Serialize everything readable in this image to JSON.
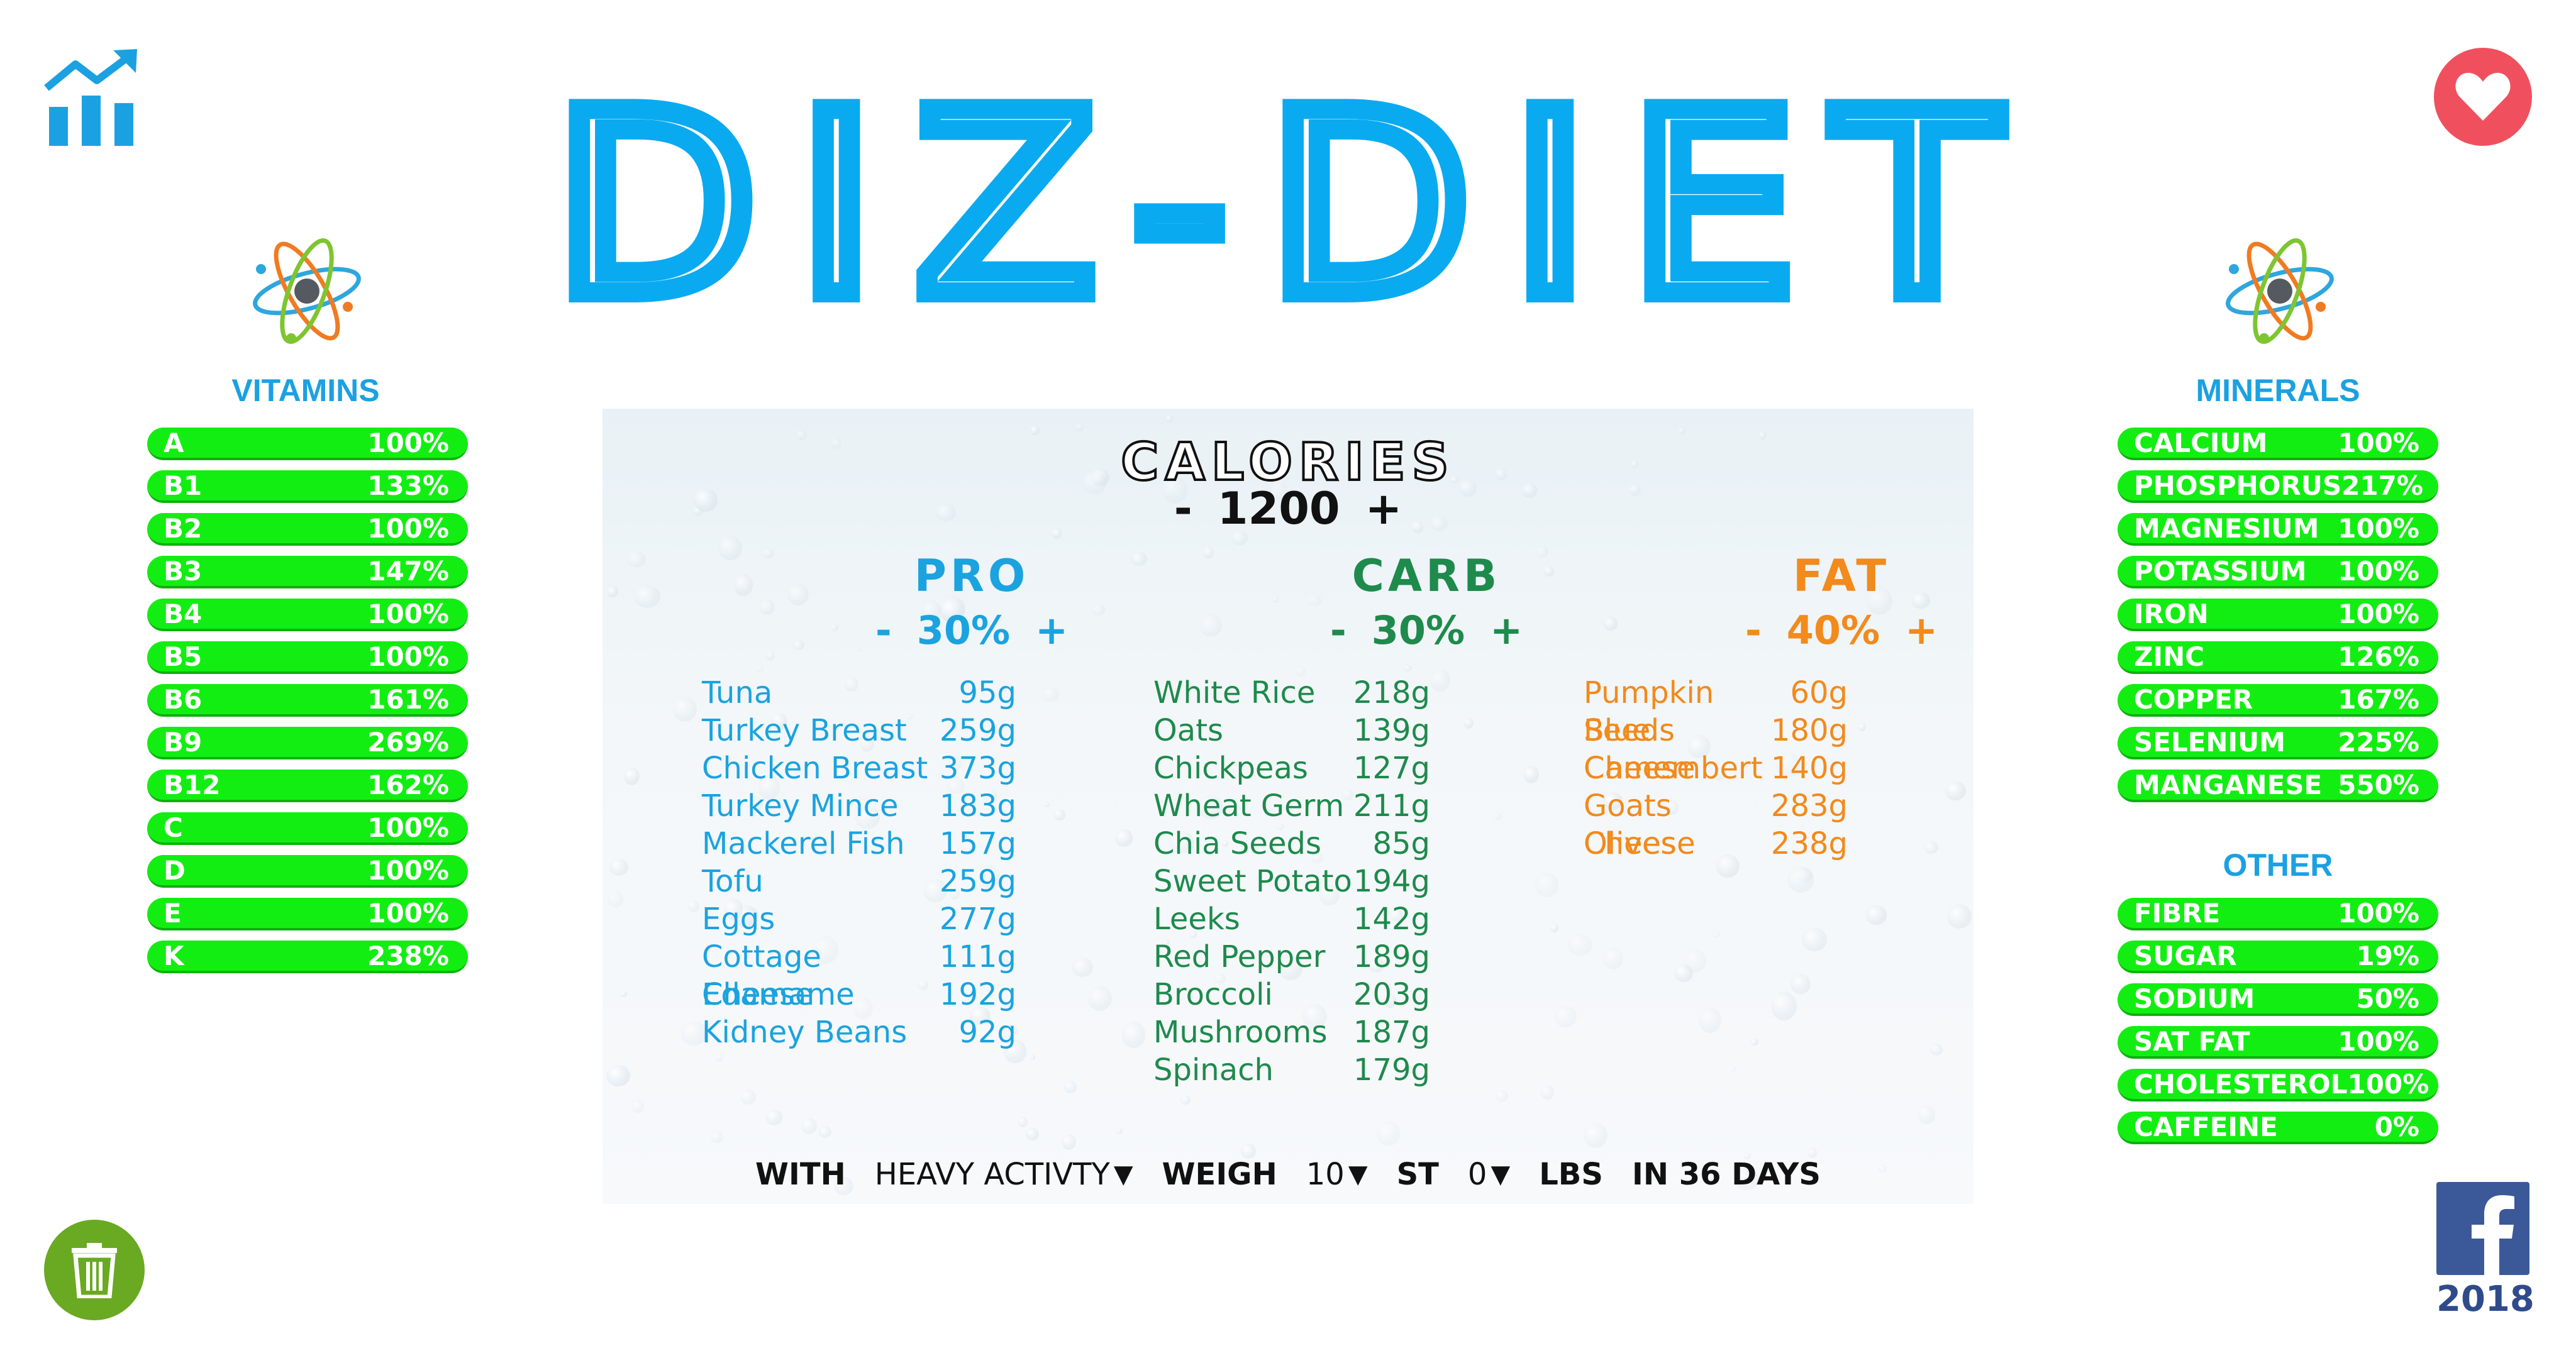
{
  "title": "DIZ-DIET",
  "colors": {
    "accent": "#1ba1e2",
    "pill": "#13ee12",
    "protein": "#1aa3df",
    "carb": "#1e8a4c",
    "fat": "#f28a1c",
    "heart": "#f0505e",
    "trash": "#6aa922",
    "facebook": "#3b5998"
  },
  "icons": {
    "chart": "chart-growth-icon",
    "heart": "heart-icon",
    "trash": "trash-icon",
    "facebook": "facebook-icon",
    "atom": "atom-icon"
  },
  "vitamins": {
    "title": "VITAMINS",
    "items": [
      {
        "label": "A",
        "value": "100%"
      },
      {
        "label": "B1",
        "value": "133%"
      },
      {
        "label": "B2",
        "value": "100%"
      },
      {
        "label": "B3",
        "value": "147%"
      },
      {
        "label": "B4",
        "value": "100%"
      },
      {
        "label": "B5",
        "value": "100%"
      },
      {
        "label": "B6",
        "value": "161%"
      },
      {
        "label": "B9",
        "value": "269%"
      },
      {
        "label": "B12",
        "value": "162%"
      },
      {
        "label": "C",
        "value": "100%"
      },
      {
        "label": "D",
        "value": "100%"
      },
      {
        "label": "E",
        "value": "100%"
      },
      {
        "label": "K",
        "value": "238%"
      }
    ]
  },
  "minerals": {
    "title": "MINERALS",
    "items": [
      {
        "label": "CALCIUM",
        "value": "100%"
      },
      {
        "label": "PHOSPHORUS",
        "value": "217%"
      },
      {
        "label": "MAGNESIUM",
        "value": "100%"
      },
      {
        "label": "POTASSIUM",
        "value": "100%"
      },
      {
        "label": "IRON",
        "value": "100%"
      },
      {
        "label": "ZINC",
        "value": "126%"
      },
      {
        "label": "COPPER",
        "value": "167%"
      },
      {
        "label": "SELENIUM",
        "value": "225%"
      },
      {
        "label": "MANGANESE",
        "value": "550%"
      }
    ]
  },
  "other": {
    "title": "OTHER",
    "items": [
      {
        "label": "FIBRE",
        "value": "100%"
      },
      {
        "label": "SUGAR",
        "value": "19%"
      },
      {
        "label": "SODIUM",
        "value": "50%"
      },
      {
        "label": "SAT FAT",
        "value": "100%"
      },
      {
        "label": "CHOLESTEROL",
        "value": "100%"
      },
      {
        "label": "CAFFEINE",
        "value": "0%"
      }
    ]
  },
  "calories": {
    "label": "CALORIES",
    "minus": "-",
    "value": "1200",
    "plus": "+"
  },
  "macros": {
    "pro": {
      "title": "PRO",
      "minus": "-",
      "percent": "30%",
      "plus": "+",
      "foods": [
        {
          "name": "Tuna",
          "amount": "95g"
        },
        {
          "name": "Turkey Breast",
          "amount": "259g"
        },
        {
          "name": "Chicken Breast",
          "amount": "373g"
        },
        {
          "name": "Turkey Mince",
          "amount": "183g"
        },
        {
          "name": "Mackerel Fish",
          "amount": "157g"
        },
        {
          "name": "Tofu",
          "amount": "259g"
        },
        {
          "name": "Eggs",
          "amount": "277g"
        },
        {
          "name": "Cottage Cheese",
          "amount": "111g"
        },
        {
          "name": "Edamame",
          "amount": "192g"
        },
        {
          "name": "Kidney Beans",
          "amount": "92g"
        }
      ]
    },
    "carb": {
      "title": "CARB",
      "minus": "-",
      "percent": "30%",
      "plus": "+",
      "foods": [
        {
          "name": "White Rice",
          "amount": "218g"
        },
        {
          "name": "Oats",
          "amount": "139g"
        },
        {
          "name": "Chickpeas",
          "amount": "127g"
        },
        {
          "name": "Wheat Germ",
          "amount": "211g"
        },
        {
          "name": "Chia Seeds",
          "amount": "85g"
        },
        {
          "name": "Sweet Potato",
          "amount": "194g"
        },
        {
          "name": "Leeks",
          "amount": "142g"
        },
        {
          "name": "Red Pepper",
          "amount": "189g"
        },
        {
          "name": "Broccoli",
          "amount": "203g"
        },
        {
          "name": "Mushrooms",
          "amount": "187g"
        },
        {
          "name": "Spinach",
          "amount": "179g"
        }
      ]
    },
    "fat": {
      "title": "FAT",
      "minus": "-",
      "percent": "40%",
      "plus": "+",
      "foods": [
        {
          "name": "Pumpkin Seeds",
          "amount": "60g"
        },
        {
          "name": "Blue Cheese",
          "amount": "180g"
        },
        {
          "name": "Camembert",
          "amount": "140g"
        },
        {
          "name": "Goats Cheese",
          "amount": "283g"
        },
        {
          "name": "Olives",
          "amount": "238g"
        }
      ]
    }
  },
  "footer": {
    "with_label": "WITH",
    "activity": "HEAVY ACTIVTY",
    "weigh_label": "WEIGH",
    "stones": "10",
    "st_label": "ST",
    "pounds": "0",
    "lbs_label": "LBS",
    "days_text": "IN 36 DAYS",
    "arrow": "▼"
  },
  "facebook": {
    "year": "2018"
  }
}
